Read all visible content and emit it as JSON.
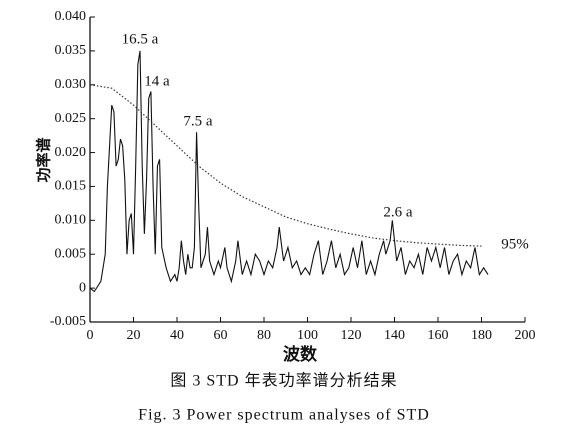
{
  "chart_data": {
    "type": "line",
    "title": "图 3   STD 年表功率谱分析结果",
    "subtitle": "Fig. 3   Power spectrum analyses of STD",
    "x_label": "波数",
    "y_label": "功率谱",
    "annotations": [
      "16.5 a",
      "14 a",
      "7.5 a",
      "2.6 a",
      "95%"
    ],
    "xlim": [
      0,
      200
    ],
    "xticks": [
      0,
      20,
      40,
      60,
      80,
      100,
      120,
      140,
      160,
      180,
      200
    ],
    "ylim": [
      -0.005,
      0.04
    ],
    "yticks": [
      {
        "value": 0.04,
        "label": "0.040"
      },
      0.035,
      {
        "value": 0.03,
        "label": "0.030"
      },
      0.025,
      {
        "value": 0.02,
        "label": "0.020"
      },
      0.015,
      {
        "value": 0.01,
        "label": "0.010"
      },
      0.005,
      0,
      -0.005
    ],
    "series": [
      {
        "name": "power",
        "color": "#111",
        "style": "solid",
        "x": [
          0,
          2,
          5,
          7,
          8,
          10,
          11,
          12,
          13,
          14,
          15,
          16,
          17,
          18,
          19,
          20,
          21,
          22,
          23,
          24,
          25,
          26,
          27,
          28,
          29,
          30,
          31,
          32,
          33,
          35,
          37,
          39,
          40,
          41,
          42,
          43,
          44,
          45,
          46,
          47,
          48,
          49,
          50,
          51,
          53,
          54,
          55,
          57,
          59,
          60,
          62,
          63,
          65,
          67,
          68,
          70,
          72,
          74,
          76,
          78,
          80,
          82,
          84,
          86,
          87,
          89,
          91,
          93,
          95,
          97,
          99,
          101,
          103,
          105,
          107,
          109,
          111,
          113,
          115,
          117,
          119,
          121,
          123,
          125,
          127,
          129,
          131,
          133,
          135,
          136,
          138,
          139,
          141,
          143,
          145,
          147,
          149,
          151,
          153,
          155,
          157,
          159,
          161,
          163,
          165,
          167,
          169,
          171,
          173,
          175,
          177,
          179,
          181,
          183
        ],
        "values": [
          0,
          -0.0005,
          0.001,
          0.005,
          0.015,
          0.027,
          0.026,
          0.018,
          0.019,
          0.022,
          0.021,
          0.016,
          0.005,
          0.01,
          0.011,
          0.005,
          0.018,
          0.033,
          0.035,
          0.018,
          0.008,
          0.016,
          0.028,
          0.029,
          0.015,
          0.005,
          0.018,
          0.019,
          0.006,
          0.003,
          0.001,
          0.002,
          0.001,
          0.003,
          0.007,
          0.004,
          0.002,
          0.005,
          0.003,
          0.003,
          0.006,
          0.023,
          0.012,
          0.003,
          0.005,
          0.009,
          0.004,
          0.002,
          0.004,
          0.003,
          0.006,
          0.003,
          0.001,
          0.004,
          0.007,
          0.002,
          0.004,
          0.002,
          0.005,
          0.004,
          0.002,
          0.004,
          0.003,
          0.006,
          0.009,
          0.004,
          0.006,
          0.003,
          0.004,
          0.002,
          0.003,
          0.002,
          0.005,
          0.007,
          0.002,
          0.004,
          0.007,
          0.003,
          0.005,
          0.002,
          0.003,
          0.006,
          0.003,
          0.007,
          0.002,
          0.004,
          0.002,
          0.005,
          0.007,
          0.005,
          0.007,
          0.01,
          0.004,
          0.006,
          0.002,
          0.004,
          0.003,
          0.005,
          0.002,
          0.006,
          0.004,
          0.006,
          0.003,
          0.006,
          0.002,
          0.004,
          0.005,
          0.002,
          0.004,
          0.003,
          0.006,
          0.002,
          0.003,
          0.002
        ]
      },
      {
        "name": "95%",
        "color": "#333",
        "style": "dotted",
        "x": [
          0,
          10,
          20,
          30,
          40,
          50,
          60,
          70,
          80,
          90,
          100,
          110,
          120,
          130,
          140,
          150,
          160,
          170,
          180
        ],
        "values": [
          0.03,
          0.0295,
          0.027,
          0.024,
          0.021,
          0.018,
          0.0155,
          0.0135,
          0.012,
          0.0105,
          0.0095,
          0.0087,
          0.008,
          0.0074,
          0.007,
          0.0067,
          0.0065,
          0.0063,
          0.0062
        ]
      }
    ]
  }
}
